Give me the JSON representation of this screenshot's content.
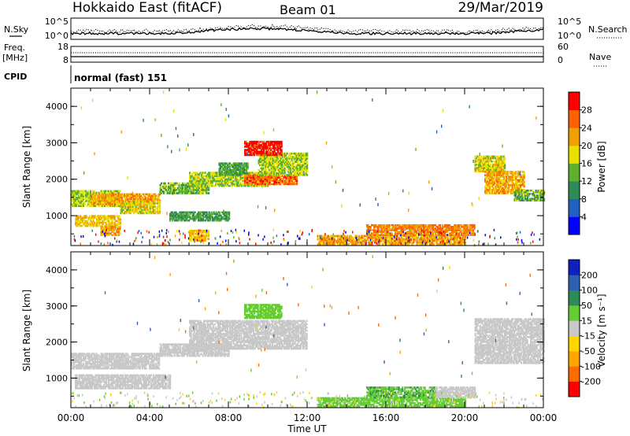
{
  "header": {
    "title": "Hokkaido East (fitACF)",
    "beam": "Beam 01",
    "date": "29/Mar/2019"
  },
  "status_panels": {
    "nsky_label": "N.Sky",
    "nsearch_label": "N.Search",
    "noise_ticks": [
      "10^5",
      "10^0"
    ],
    "freq_label_line1": "Freq.",
    "freq_label_line2": "[MHz]",
    "freq_ticks": [
      "18",
      "8"
    ],
    "nave_label": "Nave",
    "nave_ticks": [
      "60",
      "0"
    ],
    "cpid_label": "CPID",
    "cpid_value": "normal (fast) 151"
  },
  "colors": {
    "power_scale": [
      "#0000ff",
      "#2060c0",
      "#2e8b57",
      "#60b030",
      "#e8e000",
      "#f0a000",
      "#ff6000",
      "#ff0000"
    ],
    "velocity_scale": [
      "#ff0000",
      "#ff6a00",
      "#ffa500",
      "#ffd700",
      "#c8c8c8",
      "#66cc33",
      "#2e8b57",
      "#2e5fb0",
      "#1020c0"
    ],
    "ground_scatter": "#b4b4b4"
  },
  "chart_data": [
    {
      "type": "heatmap",
      "name": "power_panel",
      "ylabel": "Slant Range [km]",
      "xlabel": "",
      "y_ticks": [
        "4000",
        "3000",
        "2000",
        "1000"
      ],
      "ylim": [
        180,
        4500
      ],
      "xlim": [
        0,
        24
      ],
      "colorbar": {
        "label": "Power [dB]",
        "ticks": [
          "28",
          "24",
          "20",
          "16",
          "12",
          "8",
          "4"
        ],
        "range": [
          0,
          32
        ]
      },
      "echo_regions": [
        {
          "t0": 0.0,
          "t1": 2.5,
          "r0": 1250,
          "r1": 1700,
          "value": 16
        },
        {
          "t0": 1.0,
          "t1": 4.5,
          "r0": 1300,
          "r1": 1600,
          "value": 22
        },
        {
          "t0": 2.5,
          "t1": 4.5,
          "r0": 1050,
          "r1": 1400,
          "value": 18
        },
        {
          "t0": 4.5,
          "t1": 7.0,
          "r0": 1600,
          "r1": 1900,
          "value": 14
        },
        {
          "t0": 5.0,
          "t1": 8.0,
          "r0": 850,
          "r1": 1100,
          "value": 12
        },
        {
          "t0": 6.0,
          "t1": 10.0,
          "r0": 1800,
          "r1": 2200,
          "value": 16
        },
        {
          "t0": 7.5,
          "t1": 9.0,
          "r0": 2100,
          "r1": 2450,
          "value": 12
        },
        {
          "t0": 8.8,
          "t1": 11.5,
          "r0": 1850,
          "r1": 2100,
          "value": 26
        },
        {
          "t0": 9.5,
          "t1": 12.0,
          "r0": 2100,
          "r1": 2700,
          "value": 16
        },
        {
          "t0": 8.8,
          "t1": 10.7,
          "r0": 2650,
          "r1": 3050,
          "value": 30
        },
        {
          "t0": 0.2,
          "t1": 2.5,
          "r0": 700,
          "r1": 1000,
          "value": 20
        },
        {
          "t0": 1.5,
          "t1": 2.5,
          "r0": 450,
          "r1": 700,
          "value": 22
        },
        {
          "t0": 6.0,
          "t1": 7.0,
          "r0": 300,
          "r1": 600,
          "value": 20
        },
        {
          "t0": 12.5,
          "t1": 20.0,
          "r0": 200,
          "r1": 450,
          "value": 22
        },
        {
          "t0": 15.0,
          "t1": 20.5,
          "r0": 450,
          "r1": 750,
          "value": 24
        },
        {
          "t0": 20.5,
          "t1": 22.0,
          "r0": 2200,
          "r1": 2650,
          "value": 18
        },
        {
          "t0": 21.0,
          "t1": 23.0,
          "r0": 1600,
          "r1": 2200,
          "value": 22
        },
        {
          "t0": 22.5,
          "t1": 24.0,
          "r0": 1400,
          "r1": 1700,
          "value": 14
        }
      ]
    },
    {
      "type": "heatmap",
      "name": "velocity_panel",
      "ylabel": "Slant Range [km]",
      "xlabel": "Time UT",
      "y_ticks": [
        "4000",
        "3000",
        "2000",
        "1000"
      ],
      "x_ticks": [
        "00:00",
        "04:00",
        "08:00",
        "12:00",
        "16:00",
        "20:00",
        "00:00"
      ],
      "ylim": [
        180,
        4500
      ],
      "xlim": [
        0,
        24
      ],
      "colorbar": {
        "label": "Velocity [m s⁻¹]",
        "ticks": [
          "200",
          "100",
          "50",
          "15",
          "-15",
          "-50",
          "-100",
          "-200"
        ],
        "range": [
          -250,
          250
        ]
      },
      "echo_regions": [
        {
          "t0": 0.0,
          "t1": 4.5,
          "r0": 1250,
          "r1": 1700,
          "value": 0
        },
        {
          "t0": 0.2,
          "t1": 5.0,
          "r0": 700,
          "r1": 1100,
          "value": 0
        },
        {
          "t0": 4.5,
          "t1": 8.0,
          "r0": 1600,
          "r1": 1950,
          "value": 0
        },
        {
          "t0": 6.0,
          "t1": 12.0,
          "r0": 1800,
          "r1": 2600,
          "value": 0
        },
        {
          "t0": 8.8,
          "t1": 10.7,
          "r0": 2650,
          "r1": 3050,
          "value": 40
        },
        {
          "t0": 12.5,
          "t1": 20.0,
          "r0": 200,
          "r1": 450,
          "value": 30
        },
        {
          "t0": 15.0,
          "t1": 18.5,
          "r0": 450,
          "r1": 750,
          "value": 45
        },
        {
          "t0": 18.5,
          "t1": 20.5,
          "r0": 450,
          "r1": 750,
          "value": 0
        },
        {
          "t0": 20.5,
          "t1": 24.0,
          "r0": 1400,
          "r1": 2650,
          "value": 0
        }
      ]
    }
  ]
}
